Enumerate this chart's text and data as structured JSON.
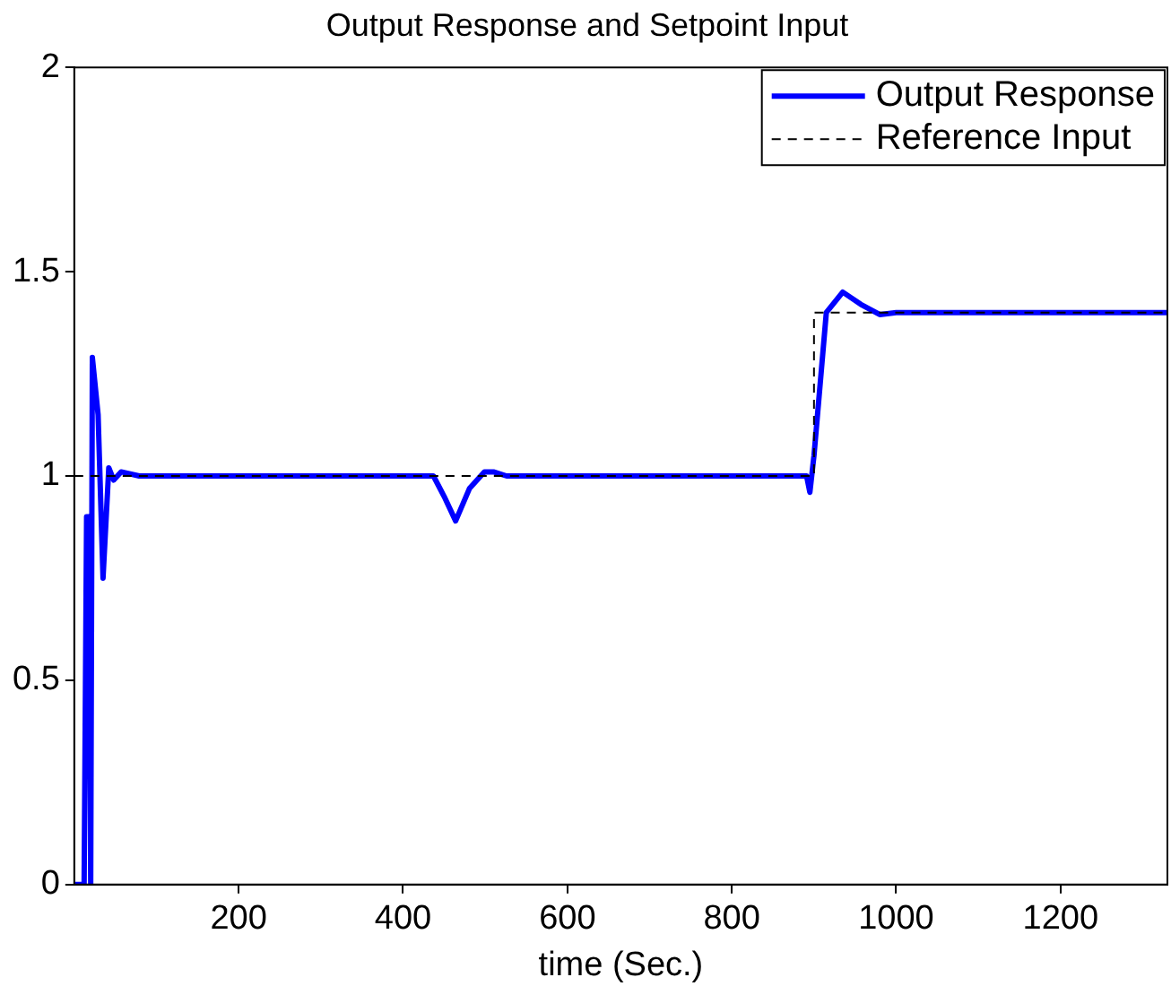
{
  "chart_data": {
    "type": "line",
    "title": "Output Response and Setpoint Input",
    "xlabel": "time (Sec.)",
    "xlim": [
      0,
      1330
    ],
    "xticks": [
      200,
      400,
      600,
      800,
      1000,
      1200
    ],
    "ylim": [
      0,
      2
    ],
    "yticks": [
      0,
      0.5,
      1,
      1.5,
      2
    ],
    "grid": false,
    "legend": "top right",
    "marker": "none",
    "series": [
      {
        "name": "Output Response",
        "color": "#0000ff",
        "line_style": "solid",
        "x": [
          0,
          5,
          12,
          15,
          18,
          20,
          22,
          29,
          35,
          42,
          48,
          57,
          79,
          437,
          450,
          464,
          481,
          499,
          510,
          526,
          891,
          895,
          900,
          915,
          935,
          957,
          980,
          1000,
          1330
        ],
        "values": [
          0,
          0,
          0,
          0.9,
          0.9,
          0,
          1.29,
          1.15,
          0.75,
          1.02,
          0.99,
          1.01,
          1,
          1,
          0.95,
          0.89,
          0.97,
          1.01,
          1.01,
          1,
          1,
          0.96,
          1.05,
          1.4,
          1.45,
          1.42,
          1.395,
          1.4,
          1.4
        ]
      },
      {
        "name": "Reference Input",
        "color": "#000000",
        "line_style": "dashed",
        "x": [
          0,
          900,
          900,
          1330
        ],
        "values": [
          1,
          1,
          1.4,
          1.4
        ]
      }
    ]
  }
}
